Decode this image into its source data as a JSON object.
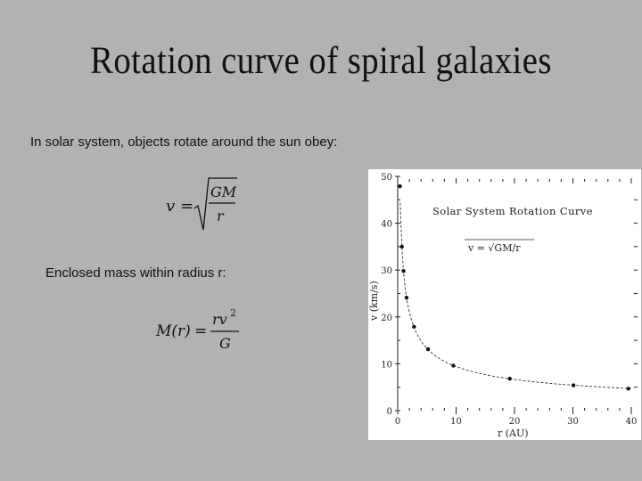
{
  "slide": {
    "title": "Rotation curve of spiral galaxies",
    "intro_text": "In solar system, objects rotate around the sun obey:",
    "enclosed_text": "Enclosed mass within radius r:"
  },
  "equations": {
    "eq1": {
      "lhs": "v",
      "equals": "=",
      "numerator": "GM",
      "denominator": "r"
    },
    "eq2": {
      "lhs": "M(r)",
      "equals": "=",
      "numerator": "rv",
      "numerator_exp": "2",
      "denominator": "G"
    }
  },
  "chart_data": {
    "type": "scatter",
    "title": "Solar System Rotation Curve",
    "annotation": "v = √GM/r",
    "xlabel": "r (AU)",
    "ylabel": "v (km/s)",
    "xlim": [
      0,
      40
    ],
    "ylim": [
      0,
      50
    ],
    "x_ticks": [
      0,
      10,
      20,
      30,
      40
    ],
    "x_tick_labels": [
      "0",
      "10",
      "20",
      "30",
      "40"
    ],
    "y_ticks": [
      0,
      10,
      20,
      30,
      40,
      50
    ],
    "y_tick_labels": [
      "0",
      "10",
      "20",
      "30",
      "40",
      "50"
    ],
    "grid": false,
    "series": [
      {
        "points": [
          {
            "x": 0.39,
            "y": 47.9
          },
          {
            "x": 0.72,
            "y": 35.0
          },
          {
            "x": 1.0,
            "y": 29.8
          },
          {
            "x": 1.52,
            "y": 24.1
          },
          {
            "x": 2.8,
            "y": 17.9
          },
          {
            "x": 5.2,
            "y": 13.1
          },
          {
            "x": 9.54,
            "y": 9.6
          },
          {
            "x": 19.2,
            "y": 6.8
          },
          {
            "x": 30.1,
            "y": 5.4
          },
          {
            "x": 39.5,
            "y": 4.7
          }
        ]
      }
    ],
    "curve": "fit"
  }
}
